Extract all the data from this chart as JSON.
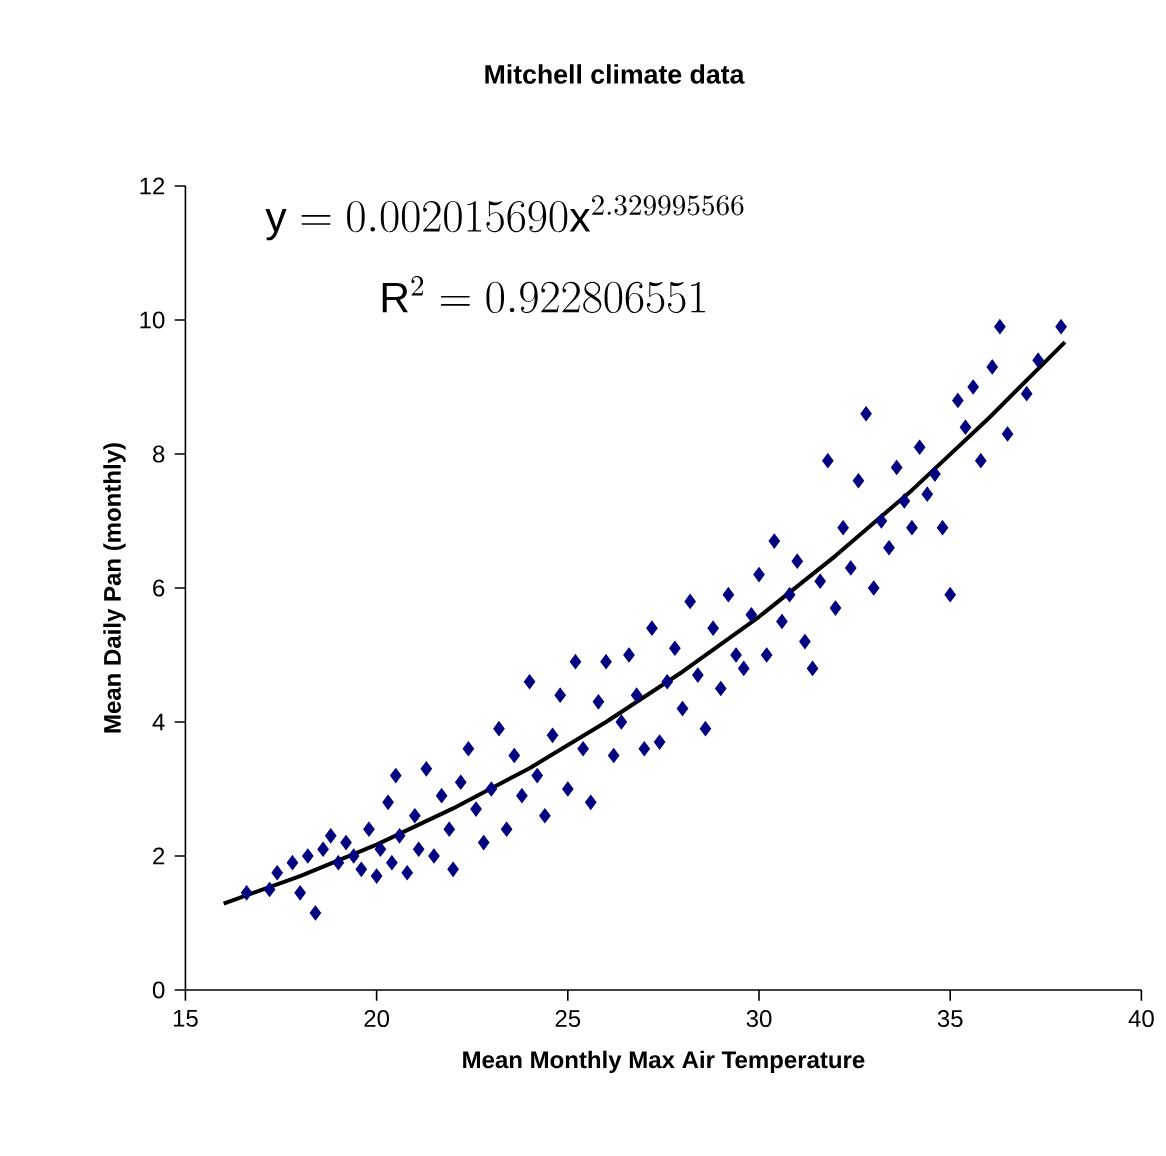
{
  "chart_data": {
    "type": "scatter",
    "title": "Mitchell climate data",
    "xlabel": "Mean Monthly Max Air Temperature",
    "ylabel": "Mean Daily Pan (monthly)",
    "annotations": [
      "\\mathrm{y} = 0.002015690\\mathrm{x}^{2.329995566}",
      "\\mathrm{R}^{2} = 0.922806551"
    ],
    "xlim": [
      15,
      40
    ],
    "ylim": [
      0,
      12
    ],
    "xticks": [
      15,
      20,
      25,
      30,
      35,
      40
    ],
    "yticks": [
      0,
      2,
      4,
      6,
      8,
      10,
      12
    ],
    "grid": false,
    "series": [
      {
        "marker": "diamond",
        "color": "#000080",
        "x": [
          16.6,
          17.2,
          17.4,
          17.8,
          18.0,
          18.2,
          18.4,
          18.6,
          18.8,
          19.0,
          19.2,
          19.4,
          19.6,
          19.8,
          20.0,
          20.1,
          20.3,
          20.4,
          20.5,
          20.6,
          20.8,
          21.0,
          21.1,
          21.3,
          21.5,
          21.7,
          21.9,
          22.0,
          22.2,
          22.4,
          22.6,
          22.8,
          23.0,
          23.2,
          23.4,
          23.6,
          23.8,
          24.0,
          24.2,
          24.4,
          24.6,
          24.8,
          25.0,
          25.2,
          25.4,
          25.6,
          25.8,
          26.0,
          26.2,
          26.4,
          26.6,
          26.8,
          27.0,
          27.2,
          27.4,
          27.6,
          27.8,
          28.0,
          28.2,
          28.4,
          28.6,
          28.8,
          29.0,
          29.2,
          29.4,
          29.6,
          29.8,
          30.0,
          30.2,
          30.4,
          30.6,
          30.8,
          31.0,
          31.2,
          31.4,
          31.6,
          31.8,
          32.0,
          32.2,
          32.4,
          32.6,
          32.8,
          33.0,
          33.2,
          33.4,
          33.6,
          33.8,
          34.0,
          34.2,
          34.4,
          34.6,
          34.8,
          35.0,
          35.2,
          35.4,
          35.6,
          35.8,
          36.1,
          36.3,
          36.5,
          37.0,
          37.3,
          37.9
        ],
        "values": [
          1.45,
          1.5,
          1.75,
          1.9,
          1.45,
          2.0,
          1.15,
          2.1,
          2.3,
          1.9,
          2.2,
          2.0,
          1.8,
          2.4,
          1.7,
          2.1,
          2.8,
          1.9,
          3.2,
          2.3,
          1.75,
          2.6,
          2.1,
          3.3,
          2.0,
          2.9,
          2.4,
          1.8,
          3.1,
          3.6,
          2.7,
          2.2,
          3.0,
          3.9,
          2.4,
          3.5,
          2.9,
          4.6,
          3.2,
          2.6,
          3.8,
          4.4,
          3.0,
          4.9,
          3.6,
          2.8,
          4.3,
          4.9,
          3.5,
          4.0,
          5.0,
          4.4,
          3.6,
          5.4,
          3.7,
          4.6,
          5.1,
          4.2,
          5.8,
          4.7,
          3.9,
          5.4,
          4.5,
          5.9,
          5.0,
          4.8,
          5.6,
          6.2,
          5.0,
          6.7,
          5.5,
          5.9,
          6.4,
          5.2,
          4.8,
          6.1,
          7.9,
          5.7,
          6.9,
          6.3,
          7.6,
          8.6,
          6.0,
          7.0,
          6.6,
          7.8,
          7.3,
          6.9,
          8.1,
          7.4,
          7.7,
          6.9,
          5.9,
          8.8,
          8.4,
          9.0,
          7.9,
          9.3,
          9.9,
          8.3,
          8.9,
          9.4,
          9.9
        ]
      },
      {
        "type": "line",
        "marker": "none",
        "color": "#000000",
        "x": [
          16,
          18,
          20,
          22,
          24,
          26,
          28,
          30,
          32,
          34,
          36,
          38
        ],
        "values": [
          1.29,
          1.7,
          2.17,
          2.71,
          3.31,
          4.0,
          4.75,
          5.57,
          6.48,
          7.46,
          8.53,
          9.67
        ]
      }
    ]
  }
}
